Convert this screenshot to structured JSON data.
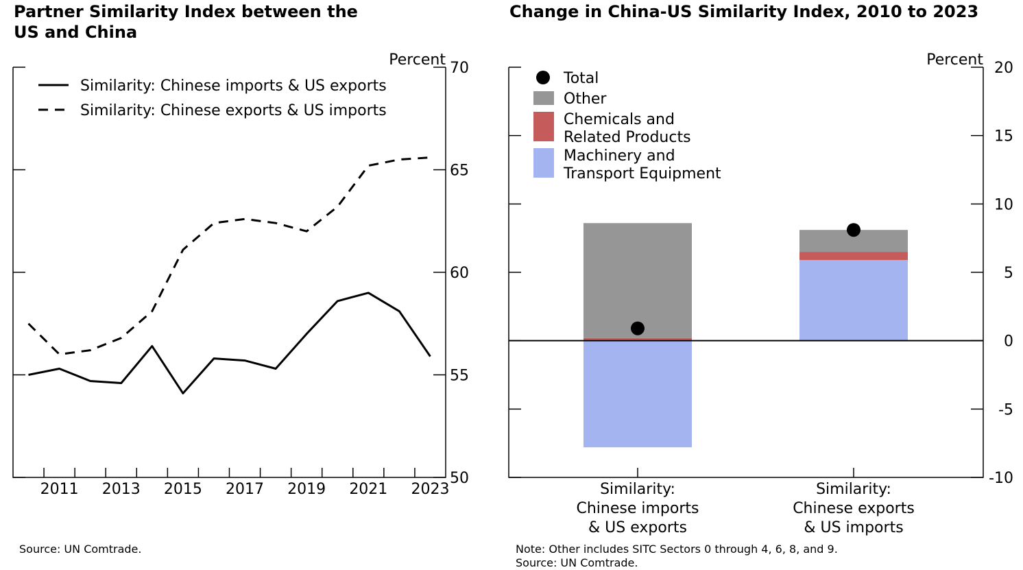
{
  "left_chart": {
    "title": "Partner Similarity Index between the US and China",
    "source": "Source: UN Comtrade."
  },
  "right_chart": {
    "title": "Change in China-US Similarity Index, 2010 to 2023",
    "note": "Note: Other includes SITC Sectors 0 through 4, 6, 8, and 9.",
    "source": "Source: UN Comtrade."
  },
  "colors": {
    "other": "#969696",
    "chemicals": "#c65b5b",
    "machinery": "#a3b4f1",
    "line": "#000000"
  },
  "chart_data": [
    {
      "type": "line",
      "title": "Partner Similarity Index between the US and China",
      "ylabel": "Percent",
      "ylim": [
        50,
        70
      ],
      "yticks": [
        50,
        55,
        60,
        65,
        70
      ],
      "xlim": [
        2009.5,
        2023.5
      ],
      "xtick_labels": [
        2011,
        2013,
        2015,
        2017,
        2019,
        2021,
        2023
      ],
      "x": [
        2010,
        2011,
        2012,
        2013,
        2014,
        2015,
        2016,
        2017,
        2018,
        2019,
        2020,
        2021,
        2022,
        2023
      ],
      "series": [
        {
          "name": "Similarity: Chinese imports & US exports",
          "style": "solid",
          "values": [
            55.0,
            55.3,
            54.7,
            54.6,
            56.4,
            54.1,
            55.8,
            55.7,
            55.3,
            57.0,
            58.6,
            59.0,
            58.1,
            55.9
          ]
        },
        {
          "name": "Similarity: Chinese exports & US imports",
          "style": "dashed",
          "values": [
            57.5,
            56.0,
            56.2,
            56.8,
            58.1,
            61.1,
            62.4,
            62.6,
            62.4,
            62.0,
            63.2,
            65.2,
            65.5,
            65.6
          ]
        }
      ],
      "legend_position": "top-left"
    },
    {
      "type": "bar",
      "stacked": true,
      "title": "Change in China-US Similarity Index, 2010 to 2023",
      "ylabel": "Percent",
      "ylim": [
        -10,
        20
      ],
      "yticks": [
        -10,
        -5,
        0,
        5,
        10,
        15,
        20
      ],
      "categories": [
        [
          "Similarity:",
          "Chinese imports",
          "& US exports"
        ],
        [
          "Similarity:",
          "Chinese exports",
          "& US imports"
        ]
      ],
      "series": [
        {
          "name": "Machinery and Transport Equipment",
          "legend_lines": [
            "Machinery and",
            "Transport Equipment"
          ],
          "color_key": "machinery",
          "values": [
            -7.8,
            5.9
          ]
        },
        {
          "name": "Chemicals and Related Products",
          "legend_lines": [
            "Chemicals and",
            "Related Products"
          ],
          "color_key": "chemicals",
          "values": [
            0.2,
            0.6
          ]
        },
        {
          "name": "Other",
          "legend_lines": [
            "Other"
          ],
          "color_key": "other",
          "values": [
            8.4,
            1.6
          ]
        }
      ],
      "total": {
        "name": "Total",
        "values": [
          0.9,
          8.1
        ]
      },
      "legend_position": "top-left"
    }
  ]
}
